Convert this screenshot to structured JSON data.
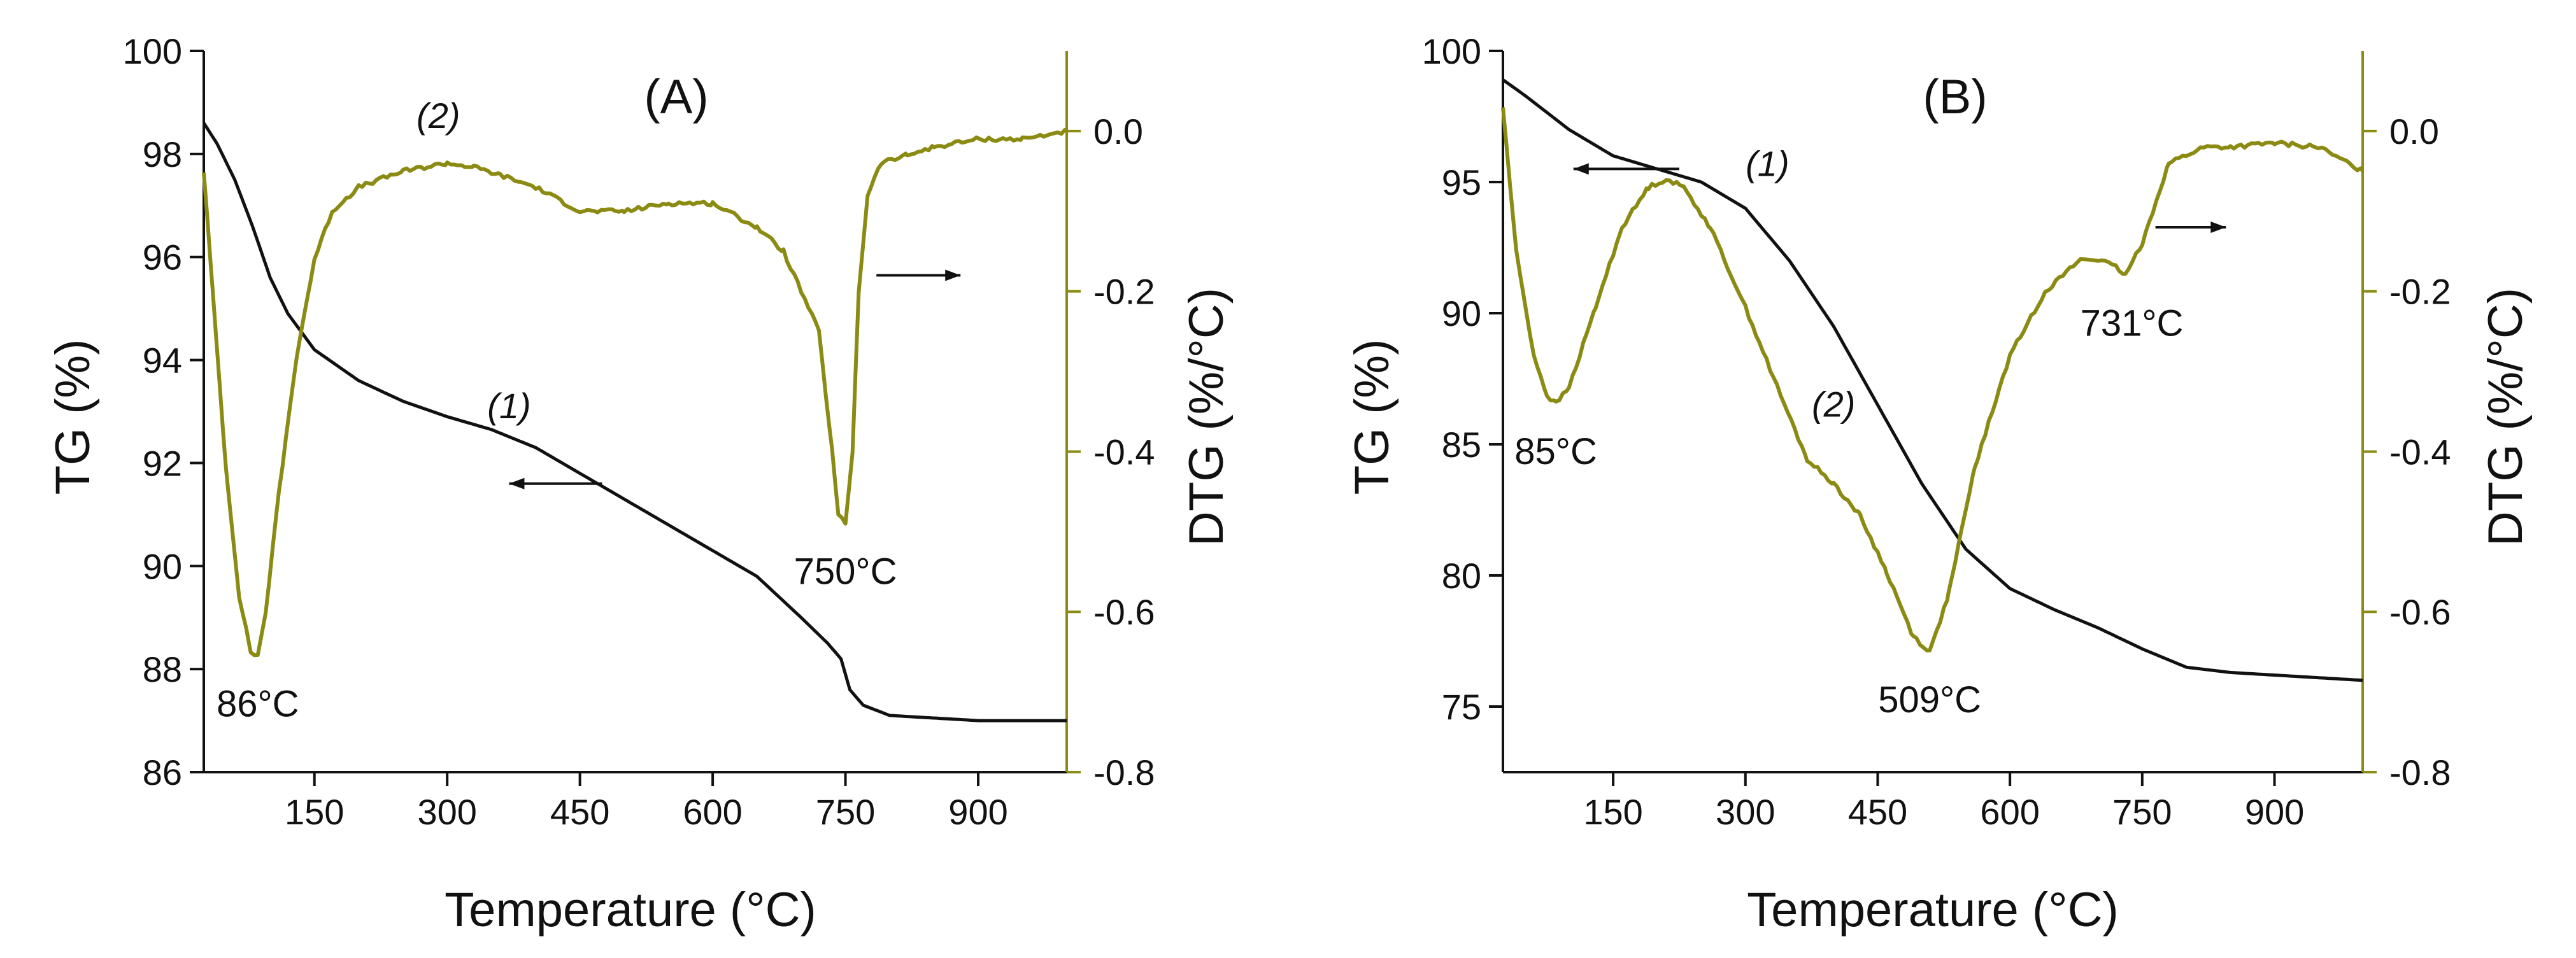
{
  "chart_data": [
    {
      "type": "line",
      "panel": "(A)",
      "xlabel": "Temperature (°C)",
      "ylabel_left": "TG (%)",
      "ylabel_right": "DTG (%/°C)",
      "xlim": [
        25,
        1000
      ],
      "ylim_left": [
        86,
        100
      ],
      "ylim_right": [
        -0.8,
        0.1
      ],
      "xticks": [
        150,
        300,
        450,
        600,
        750,
        900
      ],
      "xtick_labels": [
        "150",
        "300",
        "450",
        "600",
        "750",
        "900"
      ],
      "yticks_left": [
        86,
        88,
        90,
        92,
        94,
        96,
        98,
        100
      ],
      "ytick_labels_left": [
        "86",
        "88",
        "90",
        "92",
        "94",
        "96",
        "98",
        "100"
      ],
      "yticks_right": [
        -0.8,
        -0.6,
        -0.4,
        -0.2,
        0.0
      ],
      "ytick_labels_right": [
        "-0.8",
        "-0.6",
        "-0.4",
        "-0.2",
        "0.0"
      ],
      "series": [
        {
          "name": "(1)",
          "axis": "left",
          "color": "#111111",
          "x": [
            25,
            40,
            60,
            80,
            100,
            120,
            150,
            200,
            250,
            300,
            350,
            400,
            450,
            500,
            550,
            600,
            650,
            700,
            730,
            745,
            755,
            770,
            800,
            850,
            900,
            950,
            1000
          ],
          "y": [
            98.6,
            98.2,
            97.5,
            96.6,
            95.6,
            94.9,
            94.2,
            93.6,
            93.2,
            92.9,
            92.65,
            92.3,
            91.8,
            91.3,
            90.8,
            90.3,
            89.8,
            89.0,
            88.5,
            88.2,
            87.6,
            87.3,
            87.1,
            87.05,
            87.0,
            87.0,
            87.0
          ]
        },
        {
          "name": "(2)",
          "axis": "right",
          "color": "#8b8b14",
          "x": [
            25,
            35,
            50,
            65,
            78,
            86,
            95,
            110,
            130,
            150,
            170,
            200,
            250,
            300,
            330,
            360,
            400,
            450,
            500,
            550,
            600,
            650,
            680,
            700,
            720,
            735,
            742,
            750,
            758,
            765,
            775,
            790,
            820,
            850,
            900,
            950,
            1000
          ],
          "y": [
            -0.05,
            -0.2,
            -0.42,
            -0.58,
            -0.65,
            -0.655,
            -0.6,
            -0.45,
            -0.28,
            -0.16,
            -0.1,
            -0.07,
            -0.05,
            -0.04,
            -0.045,
            -0.055,
            -0.07,
            -0.1,
            -0.1,
            -0.09,
            -0.09,
            -0.12,
            -0.15,
            -0.2,
            -0.25,
            -0.4,
            -0.48,
            -0.49,
            -0.4,
            -0.2,
            -0.08,
            -0.04,
            -0.03,
            -0.02,
            -0.01,
            -0.01,
            0.0
          ]
        }
      ],
      "annotations": [
        {
          "text": "86°C",
          "x": 86,
          "y": -0.655,
          "axis": "right"
        },
        {
          "text": "750°C",
          "x": 750,
          "y": -0.49,
          "axis": "right"
        },
        {
          "text": "(1)",
          "x": 370,
          "y": 92.5,
          "axis": "left"
        },
        {
          "text": "(2)",
          "x": 290,
          "y": -0.02,
          "axis": "right"
        }
      ],
      "arrows": [
        {
          "direction": "left",
          "x_from": 475,
          "x_to": 370,
          "y": 91.6,
          "axis": "left"
        },
        {
          "direction": "right",
          "x_from": 785,
          "x_to": 880,
          "y": -0.18,
          "axis": "right"
        }
      ]
    },
    {
      "type": "line",
      "panel": "(B)",
      "xlabel": "Temperature (°C)",
      "ylabel_left": "TG (%)",
      "ylabel_right": "DTG (%/°C)",
      "xlim": [
        25,
        1000
      ],
      "ylim_left": [
        72.5,
        100
      ],
      "ylim_right": [
        -0.8,
        0.1
      ],
      "xticks": [
        150,
        300,
        450,
        600,
        750,
        900
      ],
      "xtick_labels": [
        "150",
        "300",
        "450",
        "600",
        "750",
        "900"
      ],
      "yticks_left": [
        75,
        80,
        85,
        90,
        95,
        100
      ],
      "ytick_labels_left": [
        "75",
        "80",
        "85",
        "90",
        "95",
        "100"
      ],
      "yticks_right": [
        -0.8,
        -0.6,
        -0.4,
        -0.2,
        0.0
      ],
      "ytick_labels_right": [
        "-0.8",
        "-0.6",
        "-0.4",
        "-0.2",
        "0.0"
      ],
      "series": [
        {
          "name": "(1)",
          "axis": "left",
          "color": "#111111",
          "x": [
            25,
            50,
            100,
            150,
            200,
            250,
            300,
            350,
            400,
            450,
            500,
            550,
            600,
            650,
            700,
            750,
            800,
            850,
            900,
            950,
            1000
          ],
          "y": [
            98.9,
            98.3,
            97.0,
            96.0,
            95.5,
            95.0,
            94.0,
            92.0,
            89.5,
            86.5,
            83.5,
            81.0,
            79.5,
            78.7,
            78.0,
            77.2,
            76.5,
            76.3,
            76.2,
            76.1,
            76.0
          ]
        },
        {
          "name": "(2)",
          "axis": "right",
          "color": "#8b8b14",
          "x": [
            25,
            40,
            60,
            75,
            85,
            100,
            130,
            160,
            190,
            210,
            230,
            260,
            300,
            340,
            370,
            400,
            430,
            460,
            490,
            509,
            530,
            560,
            600,
            640,
            680,
            700,
            720,
            731,
            750,
            780,
            820,
            850,
            900,
            950,
            1000
          ],
          "y": [
            0.03,
            -0.15,
            -0.28,
            -0.33,
            -0.34,
            -0.32,
            -0.22,
            -0.12,
            -0.07,
            -0.06,
            -0.07,
            -0.12,
            -0.22,
            -0.33,
            -0.41,
            -0.44,
            -0.48,
            -0.55,
            -0.63,
            -0.65,
            -0.58,
            -0.42,
            -0.28,
            -0.2,
            -0.16,
            -0.16,
            -0.17,
            -0.18,
            -0.14,
            -0.04,
            -0.02,
            -0.02,
            -0.015,
            -0.02,
            -0.05
          ]
        }
      ],
      "annotations": [
        {
          "text": "85°C",
          "x": 85,
          "y": -0.34,
          "axis": "right"
        },
        {
          "text": "509°C",
          "x": 509,
          "y": -0.65,
          "axis": "right"
        },
        {
          "text": "731°C",
          "x": 731,
          "y": -0.18,
          "axis": "right"
        },
        {
          "text": "(1)",
          "x": 325,
          "y": 94.5,
          "axis": "left"
        },
        {
          "text": "(2)",
          "x": 400,
          "y": -0.38,
          "axis": "right"
        }
      ],
      "arrows": [
        {
          "direction": "left",
          "x_from": 225,
          "x_to": 105,
          "y": 95.5,
          "axis": "left"
        },
        {
          "direction": "right",
          "x_from": 765,
          "x_to": 845,
          "y": -0.12,
          "axis": "right"
        }
      ]
    }
  ]
}
